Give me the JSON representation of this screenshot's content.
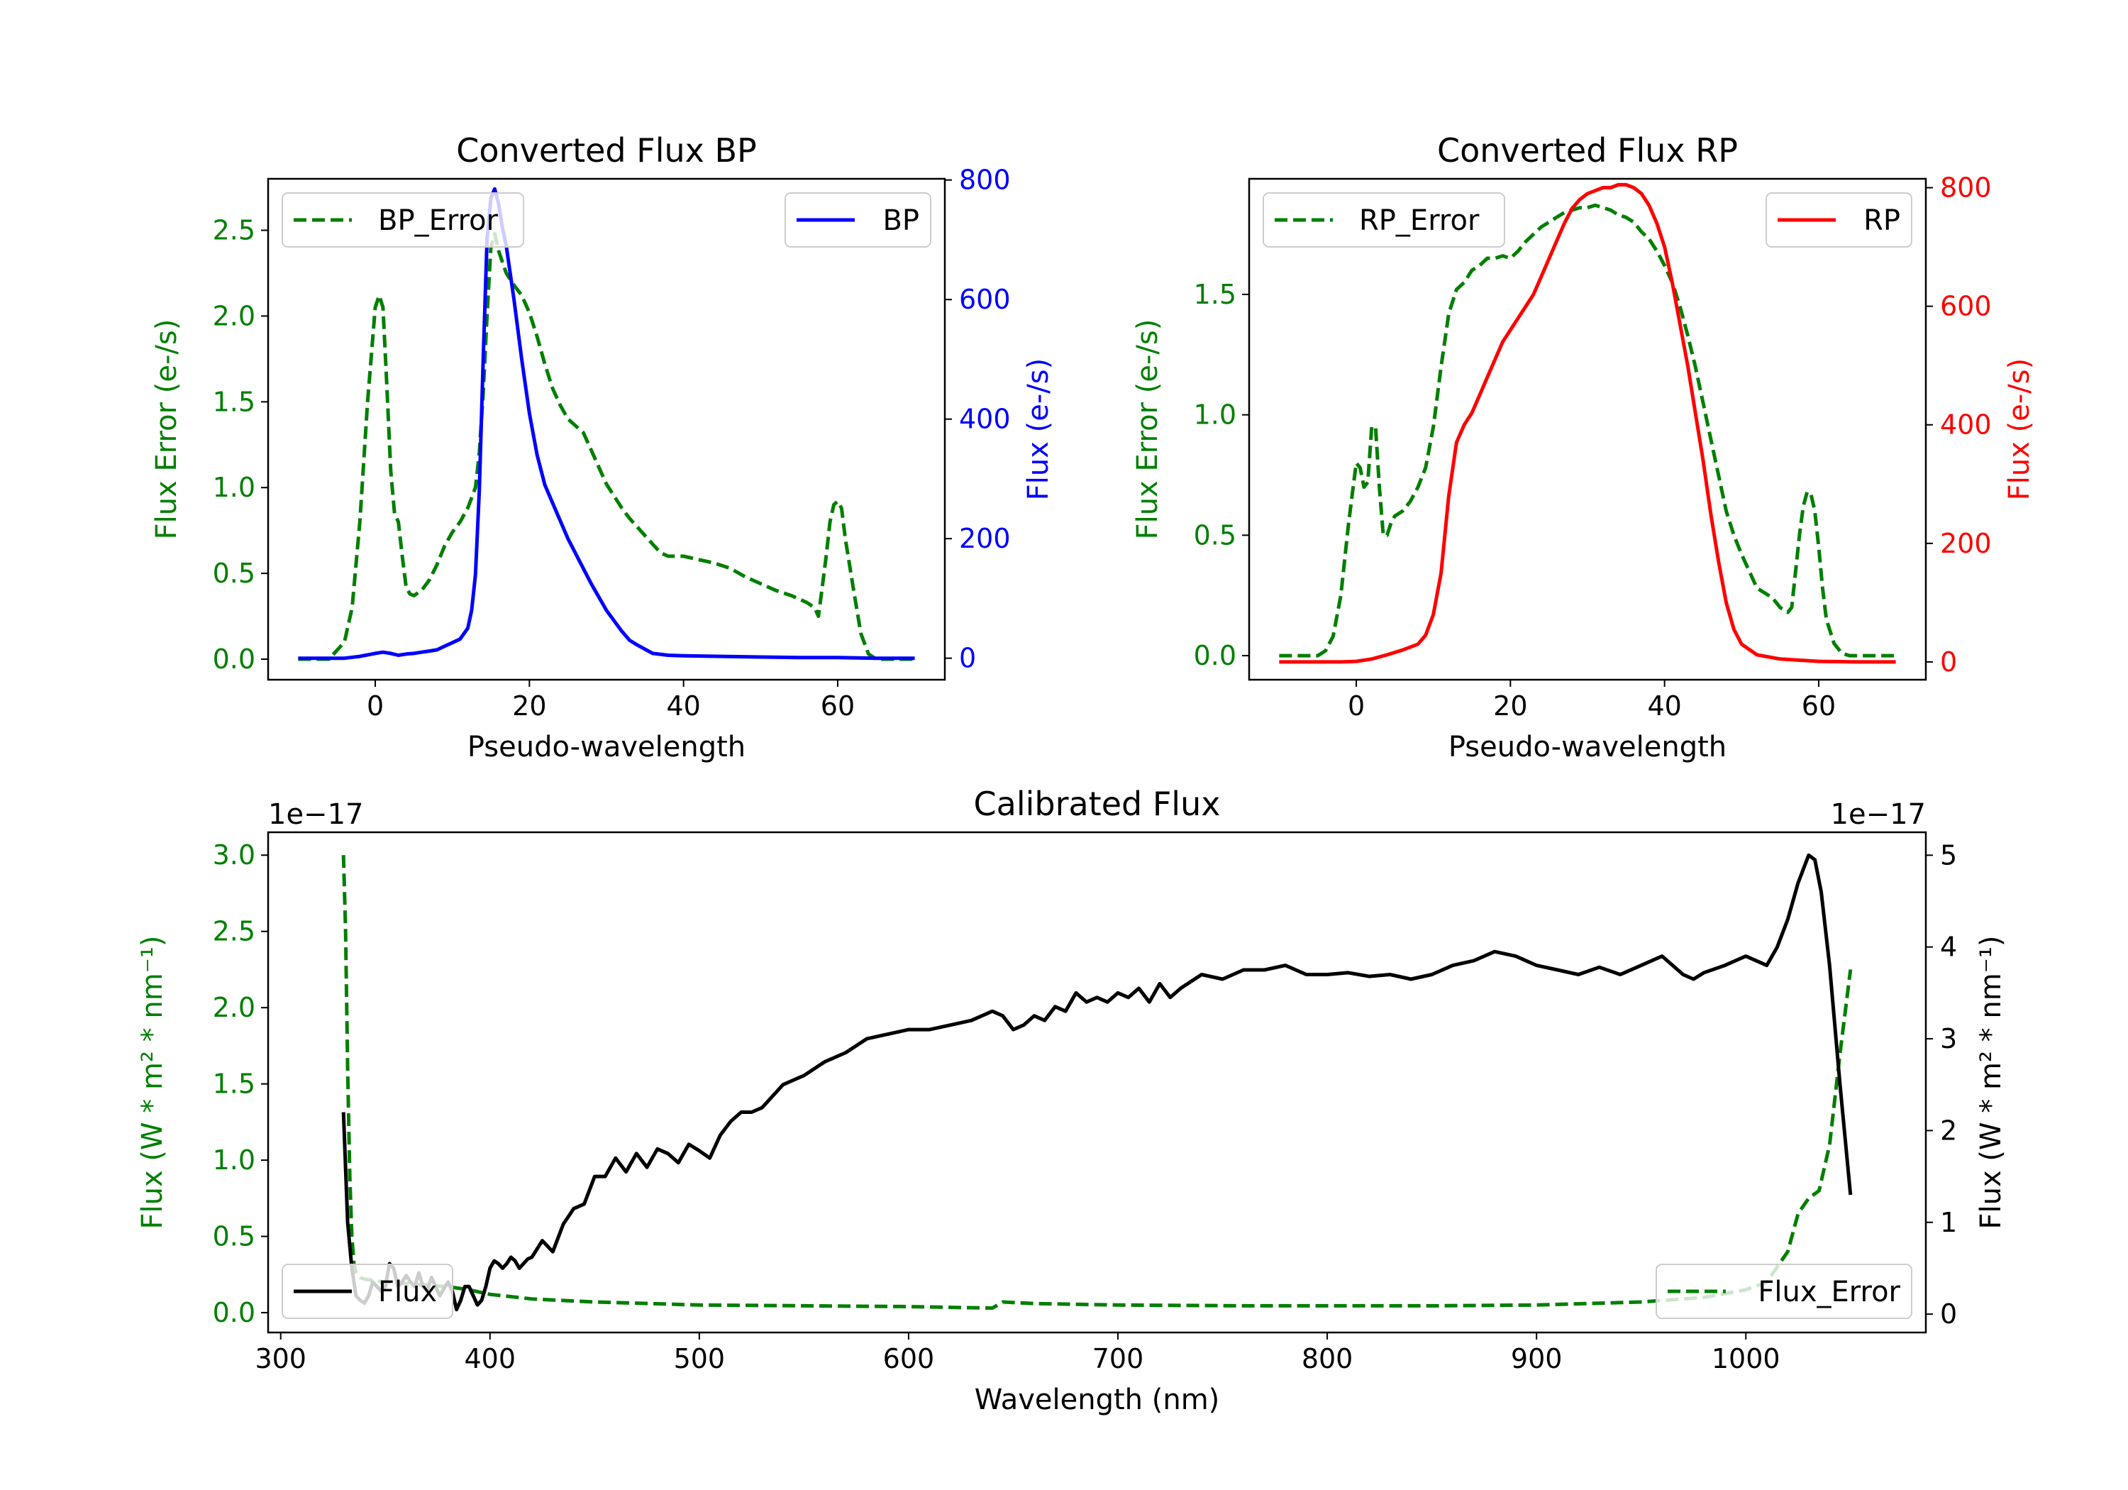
{
  "colors": {
    "green": "#007f00",
    "blue": "#0000ff",
    "red": "#ff0000",
    "black": "#000000"
  },
  "chart_data": [
    {
      "id": "bp",
      "type": "line",
      "title": "Converted Flux BP",
      "xlabel": "Pseudo-wavelength",
      "xlim": [
        -13.9,
        73.9
      ],
      "xticks": [
        0,
        20,
        40,
        60
      ],
      "left_axis": {
        "label": "Flux Error (e-/s)",
        "ylim": [
          -0.12,
          2.8
        ],
        "ticks": [
          0.0,
          0.5,
          1.0,
          1.5,
          2.0,
          2.5
        ],
        "tick_labels": [
          "0.0",
          "0.5",
          "1.0",
          "1.5",
          "2.0",
          "2.5"
        ]
      },
      "right_axis": {
        "label": "Flux (e-/s)",
        "ylim": [
          -36,
          802
        ],
        "ticks": [
          0,
          200,
          400,
          600,
          800
        ],
        "tick_labels": [
          "0",
          "200",
          "400",
          "600",
          "800"
        ]
      },
      "series": [
        {
          "name": "BP_Error",
          "axis": "left",
          "style": "dashed",
          "color": "green",
          "x": [
            -10,
            -6,
            -4,
            -3,
            -2,
            -1,
            0,
            0.5,
            1,
            1.5,
            2,
            2.5,
            3,
            3.5,
            4,
            4.5,
            5,
            6,
            7,
            8,
            9,
            10,
            11,
            12,
            13,
            13.5,
            14,
            14.5,
            15,
            15.5,
            16,
            17,
            18,
            19,
            20,
            21,
            22,
            23,
            24,
            25,
            26,
            27,
            28,
            29,
            30,
            31,
            32,
            33,
            34,
            35,
            36,
            37,
            38,
            40,
            42,
            44,
            46,
            48,
            50,
            52,
            54,
            56,
            57,
            57.5,
            58,
            58.5,
            59,
            59.5,
            60,
            60.5,
            61,
            62,
            63,
            64,
            65,
            66,
            70
          ],
          "y": [
            0,
            0,
            0.1,
            0.3,
            0.8,
            1.5,
            2.05,
            2.12,
            2.05,
            1.6,
            1.1,
            0.85,
            0.8,
            0.6,
            0.42,
            0.38,
            0.37,
            0.4,
            0.46,
            0.55,
            0.66,
            0.74,
            0.8,
            0.88,
            1.0,
            1.2,
            1.55,
            2.0,
            2.4,
            2.48,
            2.38,
            2.25,
            2.18,
            2.12,
            2.02,
            1.88,
            1.72,
            1.58,
            1.48,
            1.4,
            1.36,
            1.32,
            1.22,
            1.12,
            1.02,
            0.95,
            0.88,
            0.82,
            0.77,
            0.72,
            0.67,
            0.62,
            0.6,
            0.6,
            0.58,
            0.56,
            0.53,
            0.48,
            0.44,
            0.4,
            0.37,
            0.33,
            0.3,
            0.25,
            0.42,
            0.6,
            0.8,
            0.9,
            0.92,
            0.88,
            0.7,
            0.42,
            0.15,
            0.03,
            0,
            0,
            0
          ]
        },
        {
          "name": "BP",
          "axis": "right",
          "style": "solid",
          "color": "blue",
          "x": [
            -10,
            -4,
            -2,
            0,
            1,
            2,
            3,
            4,
            5,
            6,
            7,
            8,
            9,
            10,
            11,
            12,
            12.5,
            13,
            13.5,
            14,
            14.5,
            15,
            15.5,
            16,
            16.5,
            17,
            18,
            19,
            20,
            21,
            22,
            23,
            24,
            25,
            26,
            28,
            30,
            32,
            33,
            34,
            35,
            36,
            38,
            40,
            45,
            50,
            55,
            60,
            65,
            70
          ],
          "y": [
            0,
            0,
            3,
            8,
            10,
            8,
            5,
            7,
            8,
            10,
            12,
            14,
            20,
            26,
            32,
            50,
            80,
            140,
            280,
            500,
            700,
            770,
            785,
            760,
            720,
            690,
            600,
            500,
            410,
            340,
            290,
            260,
            230,
            200,
            175,
            125,
            80,
            45,
            30,
            22,
            15,
            8,
            5,
            4,
            3,
            2,
            1,
            1,
            0,
            0
          ]
        }
      ],
      "legends": [
        {
          "entries": [
            "BP_Error"
          ],
          "location": "upper left"
        },
        {
          "entries": [
            "BP"
          ],
          "location": "upper right"
        }
      ]
    },
    {
      "id": "rp",
      "type": "line",
      "title": "Converted Flux RP",
      "xlabel": "Pseudo-wavelength",
      "xlim": [
        -13.9,
        73.9
      ],
      "xticks": [
        0,
        20,
        40,
        60
      ],
      "left_axis": {
        "label": "Flux Error (e-/s)",
        "ylim": [
          -0.1,
          1.98
        ],
        "ticks": [
          0.0,
          0.5,
          1.0,
          1.5
        ],
        "tick_labels": [
          "0.0",
          "0.5",
          "1.0",
          "1.5"
        ]
      },
      "right_axis": {
        "label": "Flux (e-/s)",
        "ylim": [
          -30,
          815
        ],
        "ticks": [
          0,
          200,
          400,
          600,
          800
        ],
        "tick_labels": [
          "0",
          "200",
          "400",
          "600",
          "800"
        ]
      },
      "series": [
        {
          "name": "RP_Error",
          "axis": "left",
          "style": "dashed",
          "color": "green",
          "x": [
            -10,
            -5,
            -4,
            -3,
            -2,
            -1,
            0,
            0.5,
            1,
            1.5,
            2,
            2.5,
            3,
            3.5,
            4,
            4.5,
            5,
            6,
            7,
            8,
            9,
            10,
            11,
            12,
            13,
            14,
            15,
            16,
            17,
            18,
            19,
            20,
            21,
            22,
            23,
            24,
            25,
            26,
            27,
            28,
            29,
            30,
            31,
            32,
            33,
            34,
            35,
            36,
            37,
            38,
            39,
            40,
            41,
            42,
            43,
            44,
            45,
            46,
            47,
            48,
            49,
            50,
            51,
            52,
            53,
            54,
            55,
            56,
            56.5,
            57,
            57.5,
            58,
            58.5,
            59,
            59.5,
            60,
            60.5,
            61,
            62,
            63,
            64,
            65,
            70
          ],
          "y": [
            0,
            0,
            0.02,
            0.08,
            0.25,
            0.55,
            0.8,
            0.78,
            0.7,
            0.72,
            0.95,
            0.95,
            0.7,
            0.5,
            0.5,
            0.55,
            0.58,
            0.6,
            0.64,
            0.7,
            0.78,
            0.95,
            1.2,
            1.42,
            1.52,
            1.55,
            1.6,
            1.62,
            1.65,
            1.65,
            1.66,
            1.65,
            1.68,
            1.72,
            1.75,
            1.78,
            1.8,
            1.82,
            1.84,
            1.85,
            1.86,
            1.86,
            1.87,
            1.86,
            1.85,
            1.83,
            1.82,
            1.8,
            1.76,
            1.73,
            1.68,
            1.62,
            1.55,
            1.45,
            1.33,
            1.2,
            1.05,
            0.9,
            0.75,
            0.6,
            0.5,
            0.42,
            0.35,
            0.28,
            0.26,
            0.24,
            0.2,
            0.18,
            0.2,
            0.35,
            0.5,
            0.62,
            0.68,
            0.67,
            0.6,
            0.45,
            0.28,
            0.15,
            0.05,
            0.01,
            0,
            0,
            0
          ]
        },
        {
          "name": "RP",
          "axis": "right",
          "style": "solid",
          "color": "red",
          "x": [
            -10,
            -4,
            -2,
            0,
            2,
            4,
            6,
            8,
            9,
            10,
            11,
            12,
            13,
            14,
            15,
            16,
            17,
            18,
            19,
            20,
            21,
            22,
            23,
            24,
            25,
            26,
            27,
            28,
            29,
            30,
            31,
            32,
            33,
            34,
            35,
            36,
            37,
            38,
            39,
            40,
            41,
            42,
            43,
            44,
            45,
            46,
            47,
            48,
            49,
            50,
            52,
            55,
            60,
            65,
            70
          ],
          "y": [
            0,
            0,
            0,
            1,
            5,
            12,
            20,
            30,
            45,
            80,
            150,
            280,
            370,
            400,
            420,
            450,
            480,
            510,
            540,
            560,
            580,
            600,
            620,
            650,
            680,
            710,
            740,
            765,
            780,
            790,
            795,
            800,
            800,
            805,
            805,
            800,
            790,
            770,
            740,
            700,
            640,
            570,
            500,
            420,
            340,
            250,
            170,
            100,
            55,
            30,
            12,
            5,
            1,
            0,
            0
          ]
        }
      ],
      "legends": [
        {
          "entries": [
            "RP_Error"
          ],
          "location": "upper left"
        },
        {
          "entries": [
            "RP"
          ],
          "location": "upper right"
        }
      ]
    },
    {
      "id": "cal",
      "type": "line",
      "title": "Calibrated Flux",
      "xlabel": "Wavelength (nm)",
      "xlim": [
        294,
        1086
      ],
      "xticks": [
        300,
        400,
        500,
        600,
        700,
        800,
        900,
        1000
      ],
      "left_axis": {
        "label": "Flux (W * m² * nm⁻¹)",
        "offset_text": "1e−17",
        "ylim": [
          -0.13,
          3.15
        ],
        "ticks": [
          0.0,
          0.5,
          1.0,
          1.5,
          2.0,
          2.5,
          3.0
        ],
        "tick_labels": [
          "0.0",
          "0.5",
          "1.0",
          "1.5",
          "2.0",
          "2.5",
          "3.0"
        ]
      },
      "right_axis": {
        "label": "Flux (W * m² * nm⁻¹)",
        "offset_text": "1e−17",
        "ylim": [
          -0.2,
          5.25
        ],
        "ticks": [
          0,
          1,
          2,
          3,
          4,
          5
        ],
        "tick_labels": [
          "0",
          "1",
          "2",
          "3",
          "4",
          "5"
        ]
      },
      "series": [
        {
          "name": "Flux_Error",
          "axis": "left",
          "style": "dashed",
          "color": "green",
          "x": [
            330,
            331,
            332,
            333,
            334,
            335,
            336,
            338,
            340,
            345,
            350,
            360,
            370,
            380,
            390,
            400,
            420,
            450,
            500,
            550,
            600,
            640,
            645,
            660,
            700,
            760,
            800,
            850,
            900,
            950,
            980,
            1000,
            1010,
            1020,
            1025,
            1030,
            1035,
            1040,
            1045,
            1050
          ],
          "y": [
            3.0,
            2.5,
            1.6,
            0.9,
            0.5,
            0.32,
            0.26,
            0.23,
            0.22,
            0.21,
            0.2,
            0.19,
            0.18,
            0.17,
            0.15,
            0.12,
            0.09,
            0.07,
            0.05,
            0.045,
            0.04,
            0.03,
            0.07,
            0.06,
            0.05,
            0.045,
            0.045,
            0.045,
            0.05,
            0.07,
            0.1,
            0.15,
            0.2,
            0.4,
            0.65,
            0.75,
            0.8,
            1.1,
            1.7,
            2.25
          ]
        },
        {
          "name": "Flux",
          "axis": "right",
          "style": "solid",
          "color": "black",
          "x": [
            330,
            332,
            334,
            336,
            338,
            340,
            342,
            344,
            346,
            348,
            350,
            352,
            354,
            356,
            358,
            360,
            362,
            364,
            366,
            368,
            370,
            372,
            374,
            376,
            378,
            380,
            382,
            384,
            386,
            388,
            390,
            392,
            394,
            396,
            398,
            400,
            402,
            404,
            406,
            408,
            410,
            412,
            414,
            416,
            418,
            420,
            425,
            430,
            435,
            440,
            445,
            450,
            455,
            460,
            465,
            470,
            475,
            480,
            485,
            490,
            495,
            500,
            505,
            510,
            515,
            520,
            525,
            530,
            540,
            550,
            560,
            570,
            580,
            590,
            600,
            610,
            620,
            630,
            640,
            645,
            650,
            655,
            660,
            665,
            670,
            675,
            680,
            685,
            690,
            695,
            700,
            705,
            710,
            715,
            720,
            725,
            730,
            740,
            750,
            760,
            770,
            780,
            790,
            800,
            810,
            820,
            830,
            840,
            850,
            860,
            870,
            880,
            890,
            900,
            910,
            920,
            930,
            940,
            950,
            960,
            970,
            975,
            980,
            990,
            1000,
            1010,
            1015,
            1020,
            1025,
            1030,
            1033,
            1036,
            1040,
            1045,
            1050
          ],
          "y": [
            2.2,
            1.0,
            0.5,
            0.2,
            0.15,
            0.12,
            0.2,
            0.35,
            0.3,
            0.25,
            0.3,
            0.55,
            0.5,
            0.3,
            0.35,
            0.42,
            0.35,
            0.3,
            0.45,
            0.3,
            0.25,
            0.4,
            0.3,
            0.2,
            0.28,
            0.35,
            0.25,
            0.05,
            0.15,
            0.3,
            0.3,
            0.2,
            0.1,
            0.15,
            0.3,
            0.5,
            0.58,
            0.55,
            0.5,
            0.55,
            0.62,
            0.58,
            0.5,
            0.55,
            0.6,
            0.62,
            0.8,
            0.68,
            0.98,
            1.15,
            1.2,
            1.5,
            1.5,
            1.7,
            1.55,
            1.75,
            1.6,
            1.8,
            1.75,
            1.65,
            1.85,
            1.78,
            1.7,
            1.95,
            2.1,
            2.2,
            2.2,
            2.25,
            2.5,
            2.6,
            2.75,
            2.85,
            3.0,
            3.05,
            3.1,
            3.1,
            3.15,
            3.2,
            3.3,
            3.25,
            3.1,
            3.15,
            3.25,
            3.2,
            3.35,
            3.3,
            3.5,
            3.4,
            3.45,
            3.4,
            3.5,
            3.45,
            3.55,
            3.4,
            3.6,
            3.45,
            3.55,
            3.7,
            3.65,
            3.75,
            3.75,
            3.8,
            3.7,
            3.7,
            3.72,
            3.68,
            3.7,
            3.65,
            3.7,
            3.8,
            3.85,
            3.95,
            3.9,
            3.8,
            3.75,
            3.7,
            3.78,
            3.7,
            3.8,
            3.9,
            3.7,
            3.65,
            3.72,
            3.8,
            3.9,
            3.8,
            4.0,
            4.3,
            4.7,
            5.0,
            4.95,
            4.6,
            3.8,
            2.5,
            1.3
          ]
        }
      ],
      "legends": [
        {
          "entries": [
            "Flux"
          ],
          "location": "lower left"
        },
        {
          "entries": [
            "Flux_Error"
          ],
          "location": "lower right"
        }
      ]
    }
  ]
}
